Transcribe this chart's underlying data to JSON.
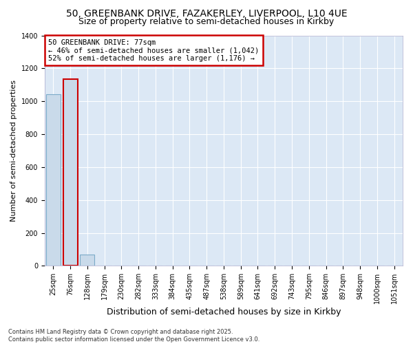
{
  "title_line1": "50, GREENBANK DRIVE, FAZAKERLEY, LIVERPOOL, L10 4UE",
  "title_line2": "Size of property relative to semi-detached houses in Kirkby",
  "xlabel": "Distribution of semi-detached houses by size in Kirkby",
  "ylabel": "Number of semi-detached properties",
  "categories": [
    "25sqm",
    "76sqm",
    "128sqm",
    "179sqm",
    "230sqm",
    "282sqm",
    "333sqm",
    "384sqm",
    "435sqm",
    "487sqm",
    "538sqm",
    "589sqm",
    "641sqm",
    "692sqm",
    "743sqm",
    "795sqm",
    "846sqm",
    "897sqm",
    "948sqm",
    "1000sqm",
    "1051sqm"
  ],
  "values": [
    1042,
    1134,
    70,
    0,
    0,
    0,
    0,
    0,
    0,
    0,
    0,
    0,
    0,
    0,
    0,
    0,
    0,
    0,
    0,
    0,
    0
  ],
  "highlight_index": 1,
  "bar_color": "#c9daea",
  "bar_edge_color": "#7aaac8",
  "highlight_edge_color": "#cc0000",
  "ylim": [
    0,
    1400
  ],
  "yticks": [
    0,
    200,
    400,
    600,
    800,
    1000,
    1200,
    1400
  ],
  "annotation_title": "50 GREENBANK DRIVE: 77sqm",
  "annotation_line1": "← 46% of semi-detached houses are smaller (1,042)",
  "annotation_line2": "52% of semi-detached houses are larger (1,176) →",
  "annotation_box_color": "#ffffff",
  "annotation_box_edge_color": "#cc0000",
  "footer_text": "Contains HM Land Registry data © Crown copyright and database right 2025.\nContains public sector information licensed under the Open Government Licence v3.0.",
  "fig_bg_color": "#ffffff",
  "plot_bg_color": "#dce8f5",
  "grid_color": "#ffffff",
  "title_fontsize": 10,
  "subtitle_fontsize": 9,
  "tick_fontsize": 7,
  "ylabel_fontsize": 8,
  "xlabel_fontsize": 9
}
